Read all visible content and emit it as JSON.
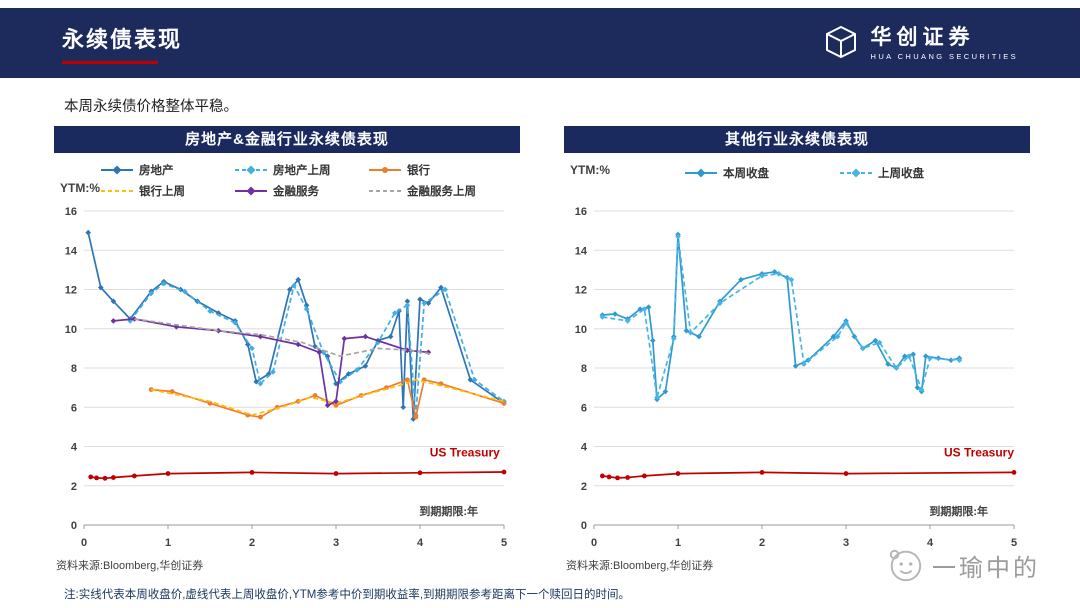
{
  "header": {
    "title": "永续债表现",
    "logo_name": "华创证券",
    "logo_sub": "HUA CHUANG SECURITIES"
  },
  "subtitle": "本周永续债价格整体平稳。",
  "footnote": "注:实线代表本周收盘价,虚线代表上周收盘价,YTM参考中价到期收益率,到期期限参考距离下一个赎回日的时间。",
  "watermark": "一瑜中的",
  "colors": {
    "navy": "#1c2a5c",
    "accent_red": "#c00000",
    "grid": "#dedede"
  },
  "chart_data": [
    {
      "type": "line",
      "title": "房地产&金融行业永续债表现",
      "ylabel": "YTM:%",
      "xlabel": "到期期限:年",
      "source": "资料来源:Bloomberg,华创证券",
      "xlim": [
        0,
        5
      ],
      "ylim": [
        0,
        16
      ],
      "yticks": [
        0,
        2,
        4,
        6,
        8,
        10,
        12,
        14,
        16
      ],
      "xticks": [
        0,
        1,
        2,
        3,
        4,
        5
      ],
      "annotation": {
        "text": "US Treasury",
        "x": 4.95,
        "y": 3.5,
        "color": "#c00000"
      },
      "series": [
        {
          "name": "房地产",
          "color": "#2E75B6",
          "dash": false,
          "marker": "diamond",
          "points": [
            [
              0.05,
              14.9
            ],
            [
              0.2,
              12.1
            ],
            [
              0.35,
              11.4
            ],
            [
              0.55,
              10.5
            ],
            [
              0.8,
              11.9
            ],
            [
              0.95,
              12.4
            ],
            [
              1.15,
              12.0
            ],
            [
              1.35,
              11.4
            ],
            [
              1.6,
              10.8
            ],
            [
              1.8,
              10.4
            ],
            [
              1.95,
              9.2
            ],
            [
              2.05,
              7.3
            ],
            [
              2.2,
              7.7
            ],
            [
              2.45,
              12.0
            ],
            [
              2.55,
              12.5
            ],
            [
              2.65,
              11.2
            ],
            [
              2.75,
              9.1
            ],
            [
              2.9,
              8.6
            ],
            [
              3.0,
              7.2
            ],
            [
              3.15,
              7.7
            ],
            [
              3.35,
              8.1
            ],
            [
              3.5,
              9.4
            ],
            [
              3.65,
              9.6
            ],
            [
              3.75,
              10.9
            ],
            [
              3.8,
              6.0
            ],
            [
              3.85,
              11.4
            ],
            [
              3.92,
              5.4
            ],
            [
              4.0,
              11.5
            ],
            [
              4.1,
              11.3
            ],
            [
              4.25,
              12.1
            ],
            [
              4.6,
              7.4
            ],
            [
              5.0,
              6.2
            ]
          ]
        },
        {
          "name": "房地产上周",
          "color": "#41AFE1",
          "dash": true,
          "marker": "diamond",
          "points": [
            [
              0.55,
              10.4
            ],
            [
              0.8,
              11.8
            ],
            [
              0.95,
              12.3
            ],
            [
              1.2,
              11.9
            ],
            [
              1.5,
              10.9
            ],
            [
              1.8,
              10.3
            ],
            [
              2.0,
              9.0
            ],
            [
              2.1,
              7.2
            ],
            [
              2.25,
              7.8
            ],
            [
              2.5,
              12.2
            ],
            [
              2.65,
              11.0
            ],
            [
              2.85,
              8.8
            ],
            [
              3.05,
              7.3
            ],
            [
              3.25,
              7.9
            ],
            [
              3.5,
              9.3
            ],
            [
              3.7,
              10.8
            ],
            [
              3.85,
              11.2
            ],
            [
              3.95,
              5.6
            ],
            [
              4.05,
              11.3
            ],
            [
              4.3,
              12.0
            ],
            [
              4.65,
              7.4
            ],
            [
              5.0,
              6.3
            ]
          ]
        },
        {
          "name": "银行",
          "color": "#ED7D31",
          "dash": false,
          "marker": "circle",
          "points": [
            [
              0.8,
              6.9
            ],
            [
              1.05,
              6.8
            ],
            [
              1.5,
              6.2
            ],
            [
              1.95,
              5.6
            ],
            [
              2.1,
              5.5
            ],
            [
              2.3,
              6.0
            ],
            [
              2.55,
              6.3
            ],
            [
              2.75,
              6.6
            ],
            [
              3.0,
              6.1
            ],
            [
              3.3,
              6.6
            ],
            [
              3.6,
              7.0
            ],
            [
              3.85,
              7.4
            ],
            [
              3.95,
              5.5
            ],
            [
              4.05,
              7.4
            ],
            [
              4.25,
              7.2
            ],
            [
              5.0,
              6.2
            ]
          ]
        },
        {
          "name": "银行上周",
          "color": "#FFC000",
          "dash": true,
          "marker": "none",
          "points": [
            [
              0.8,
              6.9
            ],
            [
              1.5,
              6.3
            ],
            [
              2.0,
              5.6
            ],
            [
              2.35,
              6.0
            ],
            [
              2.7,
              6.5
            ],
            [
              3.0,
              6.2
            ],
            [
              3.4,
              6.7
            ],
            [
              3.75,
              7.1
            ],
            [
              3.95,
              7.4
            ],
            [
              4.25,
              7.1
            ],
            [
              5.0,
              6.3
            ]
          ]
        },
        {
          "name": "金融服务",
          "color": "#7030A0",
          "dash": false,
          "marker": "diamond",
          "points": [
            [
              0.35,
              10.4
            ],
            [
              0.6,
              10.5
            ],
            [
              1.1,
              10.1
            ],
            [
              1.6,
              9.9
            ],
            [
              2.1,
              9.6
            ],
            [
              2.55,
              9.2
            ],
            [
              2.8,
              8.8
            ],
            [
              2.9,
              6.1
            ],
            [
              3.0,
              6.3
            ],
            [
              3.1,
              9.5
            ],
            [
              3.35,
              9.6
            ],
            [
              3.85,
              8.9
            ],
            [
              4.1,
              8.8
            ]
          ]
        },
        {
          "name": "金融服务上周",
          "color": "#A6A6A6",
          "dash": true,
          "marker": "none",
          "points": [
            [
              0.6,
              10.5
            ],
            [
              1.1,
              10.2
            ],
            [
              1.6,
              9.9
            ],
            [
              2.1,
              9.7
            ],
            [
              2.6,
              9.3
            ],
            [
              2.85,
              8.9
            ],
            [
              3.05,
              8.6
            ],
            [
              3.5,
              9.0
            ],
            [
              3.9,
              8.9
            ],
            [
              4.15,
              8.7
            ]
          ]
        },
        {
          "name": "US Treasury",
          "color": "#C00000",
          "dash": false,
          "marker": "circle",
          "legend": false,
          "points": [
            [
              0.08,
              2.45
            ],
            [
              0.15,
              2.4
            ],
            [
              0.25,
              2.38
            ],
            [
              0.35,
              2.42
            ],
            [
              0.6,
              2.5
            ],
            [
              1.0,
              2.62
            ],
            [
              2.0,
              2.68
            ],
            [
              3.0,
              2.62
            ],
            [
              4.0,
              2.66
            ],
            [
              5.0,
              2.7
            ]
          ]
        }
      ]
    },
    {
      "type": "line",
      "title": "其他行业永续债表现",
      "ylabel": "YTM:%",
      "xlabel": "到期期限:年",
      "source": "资料来源:Bloomberg,华创证券",
      "xlim": [
        0,
        5
      ],
      "ylim": [
        0,
        16
      ],
      "yticks": [
        0,
        2,
        4,
        6,
        8,
        10,
        12,
        14,
        16
      ],
      "xticks": [
        0,
        1,
        2,
        3,
        4,
        5
      ],
      "annotation": {
        "text": "US Treasury",
        "x": 5.0,
        "y": 3.5,
        "color": "#c00000"
      },
      "series": [
        {
          "name": "本周收盘",
          "color": "#2E9AD0",
          "dash": false,
          "marker": "diamond",
          "points": [
            [
              0.1,
              10.7
            ],
            [
              0.25,
              10.75
            ],
            [
              0.4,
              10.5
            ],
            [
              0.55,
              11.0
            ],
            [
              0.65,
              11.1
            ],
            [
              0.7,
              9.4
            ],
            [
              0.75,
              6.4
            ],
            [
              0.85,
              6.8
            ],
            [
              0.95,
              9.6
            ],
            [
              1.0,
              14.8
            ],
            [
              1.1,
              9.9
            ],
            [
              1.25,
              9.6
            ],
            [
              1.5,
              11.4
            ],
            [
              1.75,
              12.5
            ],
            [
              2.0,
              12.8
            ],
            [
              2.15,
              12.9
            ],
            [
              2.3,
              12.6
            ],
            [
              2.4,
              8.1
            ],
            [
              2.55,
              8.4
            ],
            [
              2.85,
              9.6
            ],
            [
              3.0,
              10.4
            ],
            [
              3.1,
              9.6
            ],
            [
              3.2,
              9.0
            ],
            [
              3.35,
              9.4
            ],
            [
              3.5,
              8.2
            ],
            [
              3.6,
              8.0
            ],
            [
              3.7,
              8.6
            ],
            [
              3.8,
              8.7
            ],
            [
              3.85,
              7.0
            ],
            [
              3.9,
              6.8
            ],
            [
              3.95,
              8.6
            ],
            [
              4.1,
              8.5
            ],
            [
              4.25,
              8.4
            ],
            [
              4.35,
              8.5
            ]
          ]
        },
        {
          "name": "上周收盘",
          "color": "#45B4E6",
          "dash": true,
          "marker": "diamond",
          "points": [
            [
              0.1,
              10.6
            ],
            [
              0.4,
              10.4
            ],
            [
              0.6,
              11.0
            ],
            [
              0.75,
              6.5
            ],
            [
              0.95,
              9.5
            ],
            [
              1.0,
              14.7
            ],
            [
              1.15,
              9.8
            ],
            [
              1.5,
              11.3
            ],
            [
              2.0,
              12.7
            ],
            [
              2.2,
              12.8
            ],
            [
              2.35,
              12.5
            ],
            [
              2.5,
              8.2
            ],
            [
              2.9,
              9.6
            ],
            [
              3.0,
              10.3
            ],
            [
              3.2,
              9.0
            ],
            [
              3.4,
              9.3
            ],
            [
              3.6,
              8.0
            ],
            [
              3.75,
              8.6
            ],
            [
              3.9,
              6.9
            ],
            [
              4.0,
              8.5
            ],
            [
              4.35,
              8.4
            ]
          ]
        },
        {
          "name": "US Treasury",
          "color": "#C00000",
          "dash": false,
          "marker": "circle",
          "legend": false,
          "points": [
            [
              0.1,
              2.5
            ],
            [
              0.18,
              2.45
            ],
            [
              0.28,
              2.4
            ],
            [
              0.4,
              2.42
            ],
            [
              0.6,
              2.5
            ],
            [
              1.0,
              2.62
            ],
            [
              2.0,
              2.68
            ],
            [
              3.0,
              2.62
            ],
            [
              5.0,
              2.68
            ]
          ]
        }
      ]
    }
  ]
}
